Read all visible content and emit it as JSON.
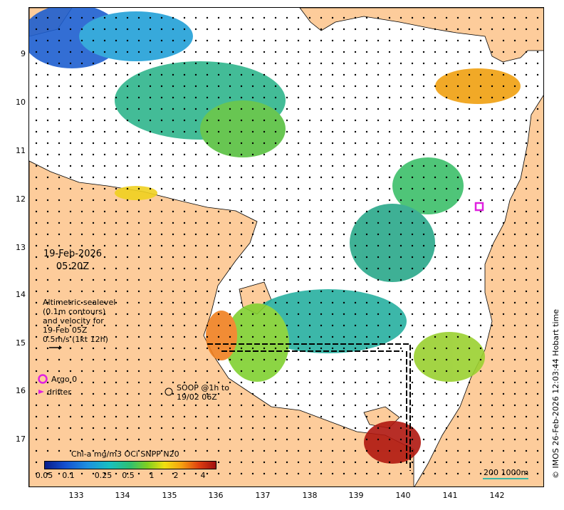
{
  "map": {
    "land_color": "#fdcc9b",
    "sea_color": "#ffffff",
    "date_line1": "19-Feb-2026",
    "date_line2": "05:20Z",
    "y_ticks": [
      "9",
      "10",
      "11",
      "12",
      "13",
      "14",
      "15",
      "16",
      "17"
    ],
    "x_ticks": [
      "133",
      "134",
      "135",
      "136",
      "137",
      "138",
      "139",
      "140",
      "141",
      "142"
    ]
  },
  "legend": {
    "altimetry_line1": "Altimetric sealevel",
    "altimetry_line2": "(0.1m contours)",
    "altimetry_line3": "and velocity for",
    "altimetry_line4": "19-Feb 05Z",
    "altimetry_line5": "0.5m/s (1kt 12h)",
    "argo_label": "Argo 0",
    "argo_color": "#e020e0",
    "drifter_label": "drifter",
    "soop_line1": "SOOP @1h to",
    "soop_line2": "19/02 06Z"
  },
  "colorbar": {
    "title": "Chl-a mg/m3 OCi SNPP N20",
    "ticks": [
      "0.05",
      "0.1",
      "0.25",
      "0.5",
      "1",
      "2",
      "4"
    ]
  },
  "scale": {
    "label": "200  1000m",
    "color": "#3ab8a8"
  },
  "copyright": "© IMOS 26-Feb-2026 12:03:44 Hobart time"
}
